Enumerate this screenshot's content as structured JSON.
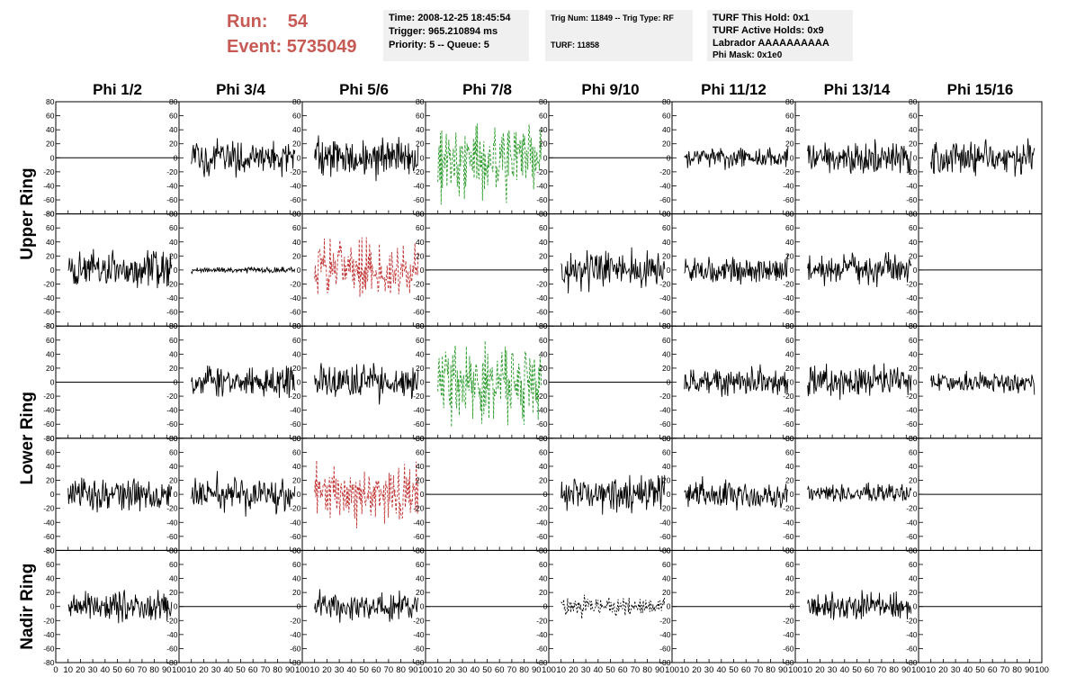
{
  "header": {
    "run_label": "Run:",
    "run_value": "54",
    "event_label": "Event:",
    "event_value": "5735049",
    "time": "Time: 2008-12-25 18:45:54",
    "trigger": "Trigger: 965.210894 ms",
    "priority": "Priority: 5 -- Queue: 5",
    "trig_num": "Trig Num: 11849 -- Trig Type: RF",
    "turf": "TURF: 11858",
    "turf_hold": "TURF This Hold: 0x1",
    "turf_active": "TURF Active Holds: 0x9",
    "labrador": "Labrador AAAAAAAAAA",
    "phi_mask": "Phi Mask: 0x1e0"
  },
  "colors": {
    "run_text": "#c85a55",
    "panel_bg": "#f0f0f0",
    "trace_default": "#000000",
    "trace_green": "#2a9a2a",
    "trace_red": "#c03030"
  },
  "chart_data": {
    "type": "line",
    "columns": [
      "Phi 1/2",
      "Phi 3/4",
      "Phi 5/6",
      "Phi 7/8",
      "Phi 9/10",
      "Phi 11/12",
      "Phi 13/14",
      "Phi 15/16"
    ],
    "rows": [
      "Upper Ring",
      "Lower Ring",
      "Nadir Ring"
    ],
    "y_ticks": [
      "80",
      "60",
      "40",
      "20",
      "0",
      "-20",
      "-40",
      "-60",
      "-80"
    ],
    "x_ticks": [
      "0",
      "10",
      "20",
      "30",
      "40",
      "50",
      "60",
      "70",
      "80",
      "90",
      "100"
    ],
    "ylim": [
      -80,
      80
    ],
    "xlim": [
      0,
      100
    ],
    "panels": [
      {
        "row": 0,
        "col": 0,
        "style": "flat"
      },
      {
        "row": 0,
        "col": 1,
        "style": "solid",
        "amp": 18
      },
      {
        "row": 0,
        "col": 2,
        "style": "solid",
        "amp": 20
      },
      {
        "row": 0,
        "col": 3,
        "style": "dashed-green",
        "amp": 40
      },
      {
        "row": 0,
        "col": 4,
        "style": "flat"
      },
      {
        "row": 0,
        "col": 5,
        "style": "solid",
        "amp": 10
      },
      {
        "row": 0,
        "col": 6,
        "style": "solid",
        "amp": 18
      },
      {
        "row": 0,
        "col": 7,
        "style": "solid",
        "amp": 18
      },
      {
        "row": 1,
        "col": 0,
        "style": "solid",
        "amp": 20
      },
      {
        "row": 1,
        "col": 1,
        "style": "solid",
        "amp": 3
      },
      {
        "row": 1,
        "col": 2,
        "style": "dashed-red",
        "amp": 30
      },
      {
        "row": 1,
        "col": 3,
        "style": "flat"
      },
      {
        "row": 1,
        "col": 4,
        "style": "solid",
        "amp": 18
      },
      {
        "row": 1,
        "col": 5,
        "style": "solid",
        "amp": 14
      },
      {
        "row": 1,
        "col": 6,
        "style": "solid",
        "amp": 16
      },
      {
        "row": 1,
        "col": 7,
        "style": "flat"
      },
      {
        "row": 2,
        "col": 0,
        "style": "flat"
      },
      {
        "row": 2,
        "col": 1,
        "style": "solid",
        "amp": 18
      },
      {
        "row": 2,
        "col": 2,
        "style": "solid",
        "amp": 20
      },
      {
        "row": 2,
        "col": 3,
        "style": "dashed-green",
        "amp": 40
      },
      {
        "row": 2,
        "col": 4,
        "style": "flat"
      },
      {
        "row": 2,
        "col": 5,
        "style": "solid",
        "amp": 14
      },
      {
        "row": 2,
        "col": 6,
        "style": "solid",
        "amp": 18
      },
      {
        "row": 2,
        "col": 7,
        "style": "solid",
        "amp": 10
      },
      {
        "row": 3,
        "col": 0,
        "style": "solid",
        "amp": 18
      },
      {
        "row": 3,
        "col": 1,
        "style": "solid",
        "amp": 18
      },
      {
        "row": 3,
        "col": 2,
        "style": "dashed-red",
        "amp": 28
      },
      {
        "row": 3,
        "col": 3,
        "style": "flat"
      },
      {
        "row": 3,
        "col": 4,
        "style": "solid",
        "amp": 20
      },
      {
        "row": 3,
        "col": 5,
        "style": "solid",
        "amp": 15
      },
      {
        "row": 3,
        "col": 6,
        "style": "solid",
        "amp": 10
      },
      {
        "row": 3,
        "col": 7,
        "style": "flat"
      },
      {
        "row": 4,
        "col": 0,
        "style": "solid",
        "amp": 16
      },
      {
        "row": 4,
        "col": 1,
        "style": "flat"
      },
      {
        "row": 4,
        "col": 2,
        "style": "solid",
        "amp": 14
      },
      {
        "row": 4,
        "col": 3,
        "style": "flat"
      },
      {
        "row": 4,
        "col": 4,
        "style": "dashed-black",
        "amp": 10
      },
      {
        "row": 4,
        "col": 5,
        "style": "flat"
      },
      {
        "row": 4,
        "col": 6,
        "style": "solid",
        "amp": 14
      },
      {
        "row": 4,
        "col": 7,
        "style": "flat"
      }
    ]
  }
}
